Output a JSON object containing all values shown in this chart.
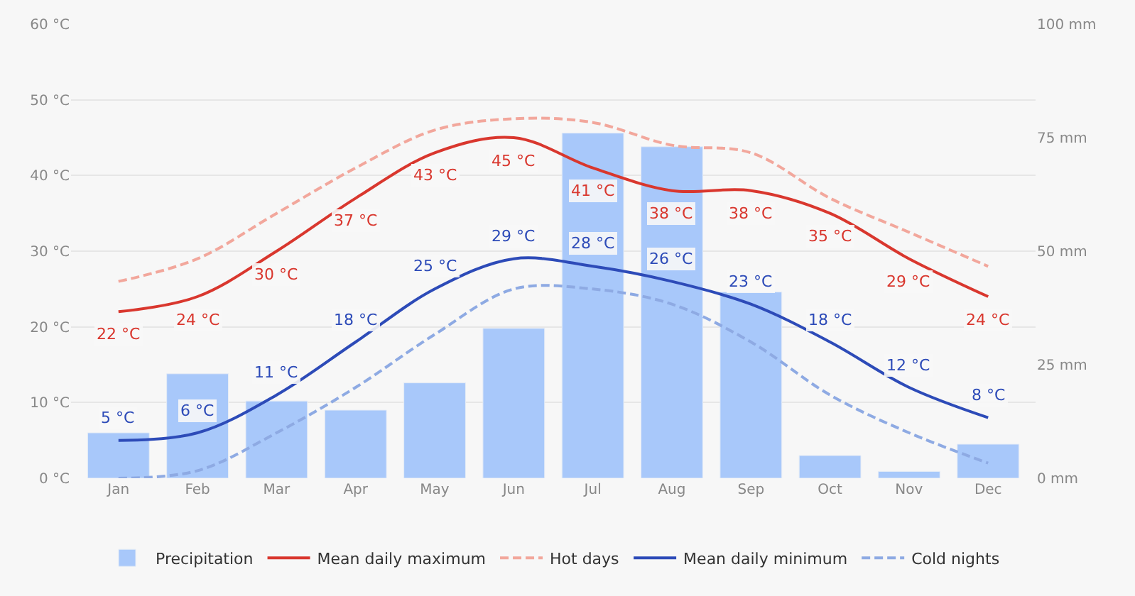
{
  "chart_data": {
    "type": "bar",
    "categories": [
      "Jan",
      "Feb",
      "Mar",
      "Apr",
      "May",
      "Jun",
      "Jul",
      "Aug",
      "Sep",
      "Oct",
      "Nov",
      "Dec"
    ],
    "series": [
      {
        "name": "Precipitation",
        "axis": "y2",
        "color": "#a8c8fa",
        "values": [
          10,
          23,
          17,
          15,
          21,
          33,
          76,
          73,
          41,
          5,
          1.5,
          7.5
        ]
      },
      {
        "name": "Mean daily maximum",
        "type": "line",
        "color": "#d9372e",
        "line_style": "solid",
        "values": [
          22,
          24,
          30,
          37,
          43,
          45,
          41,
          38,
          38,
          35,
          29,
          24
        ],
        "value_labels": [
          "22 °C",
          "24 °C",
          "30 °C",
          "37 °C",
          "43 °C",
          "45 °C",
          "41 °C",
          "38 °C",
          "38 °C",
          "35 °C",
          "29 °C",
          "24 °C"
        ]
      },
      {
        "name": "Hot days",
        "type": "line",
        "color": "#f2a79c",
        "line_style": "dashed",
        "values": [
          26,
          29,
          35,
          41,
          46,
          47.5,
          47,
          44,
          43,
          37,
          32.5,
          28
        ]
      },
      {
        "name": "Mean daily minimum",
        "type": "line",
        "color": "#2d4bb8",
        "line_style": "solid",
        "values": [
          5,
          6,
          11,
          18,
          25,
          29,
          28,
          26,
          23,
          18,
          12,
          8
        ],
        "value_labels": [
          "5 °C",
          "6 °C",
          "11 °C",
          "18 °C",
          "25 °C",
          "29 °C",
          "28 °C",
          "26 °C",
          "23 °C",
          "18 °C",
          "12 °C",
          "8 °C"
        ]
      },
      {
        "name": "Cold nights",
        "type": "line",
        "color": "#8eaae3",
        "line_style": "dashed",
        "values": [
          0,
          1,
          6,
          12,
          19,
          25,
          25,
          23,
          18,
          11,
          6,
          2
        ]
      }
    ],
    "ylim": [
      0,
      60
    ],
    "yticks": [
      {
        "value": 0,
        "label": "0 °C"
      },
      {
        "value": 10,
        "label": "10 °C"
      },
      {
        "value": 20,
        "label": "20 °C"
      },
      {
        "value": 30,
        "label": "30 °C"
      },
      {
        "value": 40,
        "label": "40 °C"
      },
      {
        "value": 50,
        "label": "50 °C"
      },
      {
        "value": 60,
        "label": "60 °C"
      }
    ],
    "y2lim": [
      0,
      100
    ],
    "y2ticks": [
      {
        "value": 0,
        "label": "0 mm"
      },
      {
        "value": 25,
        "label": "25 mm"
      },
      {
        "value": 50,
        "label": "50 mm"
      },
      {
        "value": 75,
        "label": "75 mm"
      },
      {
        "value": 100,
        "label": "100 mm"
      }
    ],
    "grid": "y",
    "legend": "bottom"
  }
}
